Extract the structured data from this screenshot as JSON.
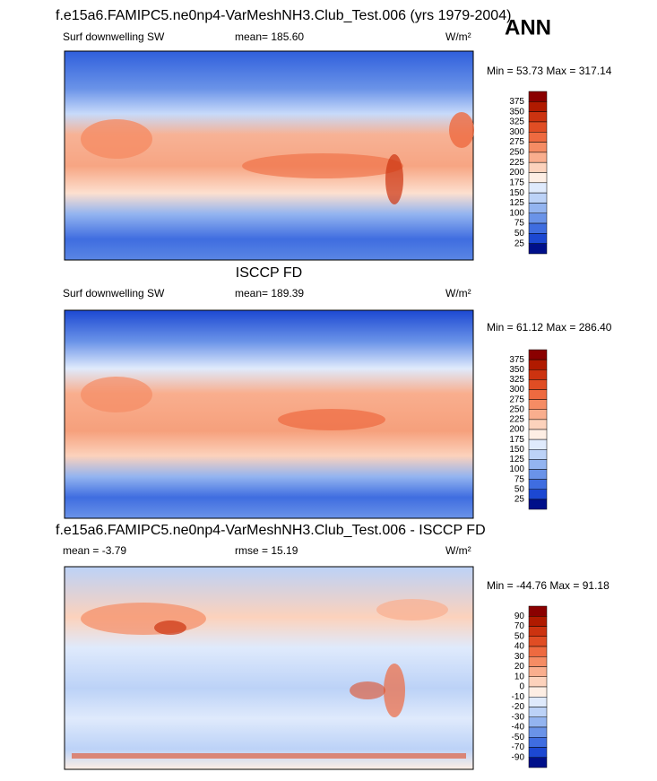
{
  "header": {
    "title": "f.e15a6.FAMIPC5.ne0np4-VarMeshNH3.Club_Test.006 (yrs 1979-2004)",
    "season": "ANN"
  },
  "panels": [
    {
      "variable": "Surf downwelling SW",
      "stat": "mean= 185.60",
      "units": "W/m²",
      "minmax": "Min =  53.73 Max = 317.14",
      "colorbar": {
        "labels": [
          375,
          350,
          325,
          300,
          275,
          250,
          225,
          200,
          175,
          150,
          125,
          100,
          75,
          50,
          25
        ],
        "colors": [
          "#8a0000",
          "#b01a00",
          "#cc3310",
          "#e04d24",
          "#ee6a40",
          "#f58c64",
          "#f9ae8e",
          "#fcd2bc",
          "#fdeee4",
          "#dfeafc",
          "#bcd2f7",
          "#93b4f0",
          "#6a93e8",
          "#3f6de0",
          "#1c48d2",
          "#00108a"
        ]
      }
    },
    {
      "title": "ISCCP FD",
      "variable": "Surf downwelling SW",
      "stat": "mean= 189.39",
      "units": "W/m²",
      "minmax": "Min =  61.12 Max = 286.40",
      "colorbar": {
        "labels": [
          375,
          350,
          325,
          300,
          275,
          250,
          225,
          200,
          175,
          150,
          125,
          100,
          75,
          50,
          25
        ],
        "colors": [
          "#8a0000",
          "#b01a00",
          "#cc3310",
          "#e04d24",
          "#ee6a40",
          "#f58c64",
          "#f9ae8e",
          "#fcd2bc",
          "#fdeee4",
          "#dfeafc",
          "#bcd2f7",
          "#93b4f0",
          "#6a93e8",
          "#3f6de0",
          "#1c48d2",
          "#00108a"
        ]
      }
    },
    {
      "title": "f.e15a6.FAMIPC5.ne0np4-VarMeshNH3.Club_Test.006 - ISCCP FD",
      "variable": "mean = -3.79",
      "stat": "rmse = 15.19",
      "units": "W/m²",
      "minmax": "Min = -44.76 Max =  91.18",
      "colorbar": {
        "labels": [
          90,
          70,
          50,
          40,
          30,
          20,
          10,
          0,
          -10,
          -20,
          -30,
          -40,
          -50,
          -70,
          -90
        ],
        "colors": [
          "#8a0000",
          "#b01a00",
          "#cc3310",
          "#e04d24",
          "#ee6a40",
          "#f58c64",
          "#f9ae8e",
          "#fcd2bc",
          "#fdeee4",
          "#dfeafc",
          "#bcd2f7",
          "#93b4f0",
          "#6a93e8",
          "#3f6de0",
          "#1c48d2",
          "#00108a"
        ]
      }
    }
  ]
}
